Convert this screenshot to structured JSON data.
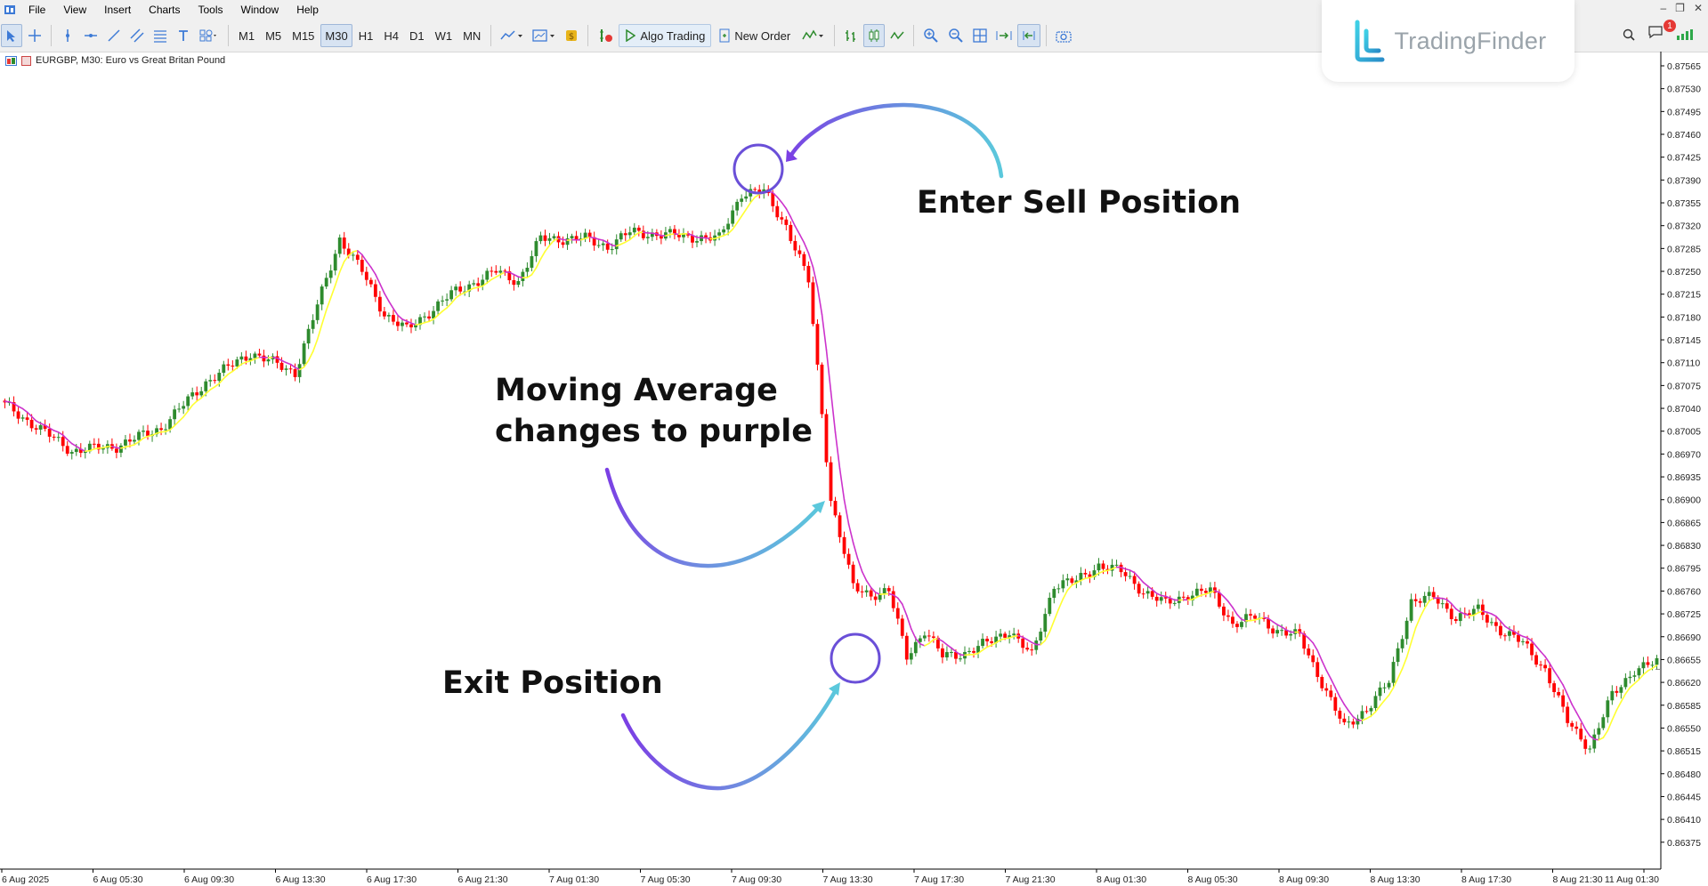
{
  "menu": {
    "items": [
      "File",
      "View",
      "Insert",
      "Charts",
      "Tools",
      "Window",
      "Help"
    ]
  },
  "toolbar": {
    "timeframes": [
      "M1",
      "M5",
      "M15",
      "M30",
      "H1",
      "H4",
      "D1",
      "W1",
      "MN"
    ],
    "active_timeframe": "M30",
    "algo_trading_label": "Algo Trading",
    "new_order_label": "New Order",
    "notification_count": "1"
  },
  "brand": {
    "name": "TradingFinder"
  },
  "chart": {
    "info": "EURGBP, M30:  Euro vs Great Britan Pound",
    "price_labels": [
      "0.87565",
      "0.87530",
      "0.87495",
      "0.87460",
      "0.87425",
      "0.87390",
      "0.87355",
      "0.87320",
      "0.87285",
      "0.87250",
      "0.87215",
      "0.87180",
      "0.87145",
      "0.87110",
      "0.87075",
      "0.87040",
      "0.87005",
      "0.86970",
      "0.86935",
      "0.86900",
      "0.86865",
      "0.86830",
      "0.86795",
      "0.86760",
      "0.86725",
      "0.86690",
      "0.86655",
      "0.86620",
      "0.86585",
      "0.86550",
      "0.86515",
      "0.86480",
      "0.86445",
      "0.86410",
      "0.86375"
    ],
    "current_price": "0.86640",
    "time_labels": [
      "6 Aug 2025",
      "6 Aug 05:30",
      "6 Aug 09:30",
      "6 Aug 13:30",
      "6 Aug 17:30",
      "6 Aug 21:30",
      "7 Aug 01:30",
      "7 Aug 05:30",
      "7 Aug 09:30",
      "7 Aug 13:30",
      "7 Aug 17:30",
      "7 Aug 21:30",
      "8 Aug 01:30",
      "8 Aug 05:30",
      "8 Aug 09:30",
      "8 Aug 13:30",
      "8 Aug 17:30",
      "8 Aug 21:30",
      "11 Aug 01:30"
    ],
    "colors": {
      "bull": "#2e8b2e",
      "bear": "#ff0000",
      "ma_up": "#ffff33",
      "ma_down": "#cc33cc",
      "circle": "#6a4fd8",
      "arrow_start": "#7b3fe4",
      "arrow_end": "#5bc8dc"
    }
  },
  "annotations": {
    "enter_sell": "Enter Sell Position",
    "ma_line1": "Moving Average",
    "ma_line2": "changes to purple",
    "exit": "Exit Position"
  }
}
